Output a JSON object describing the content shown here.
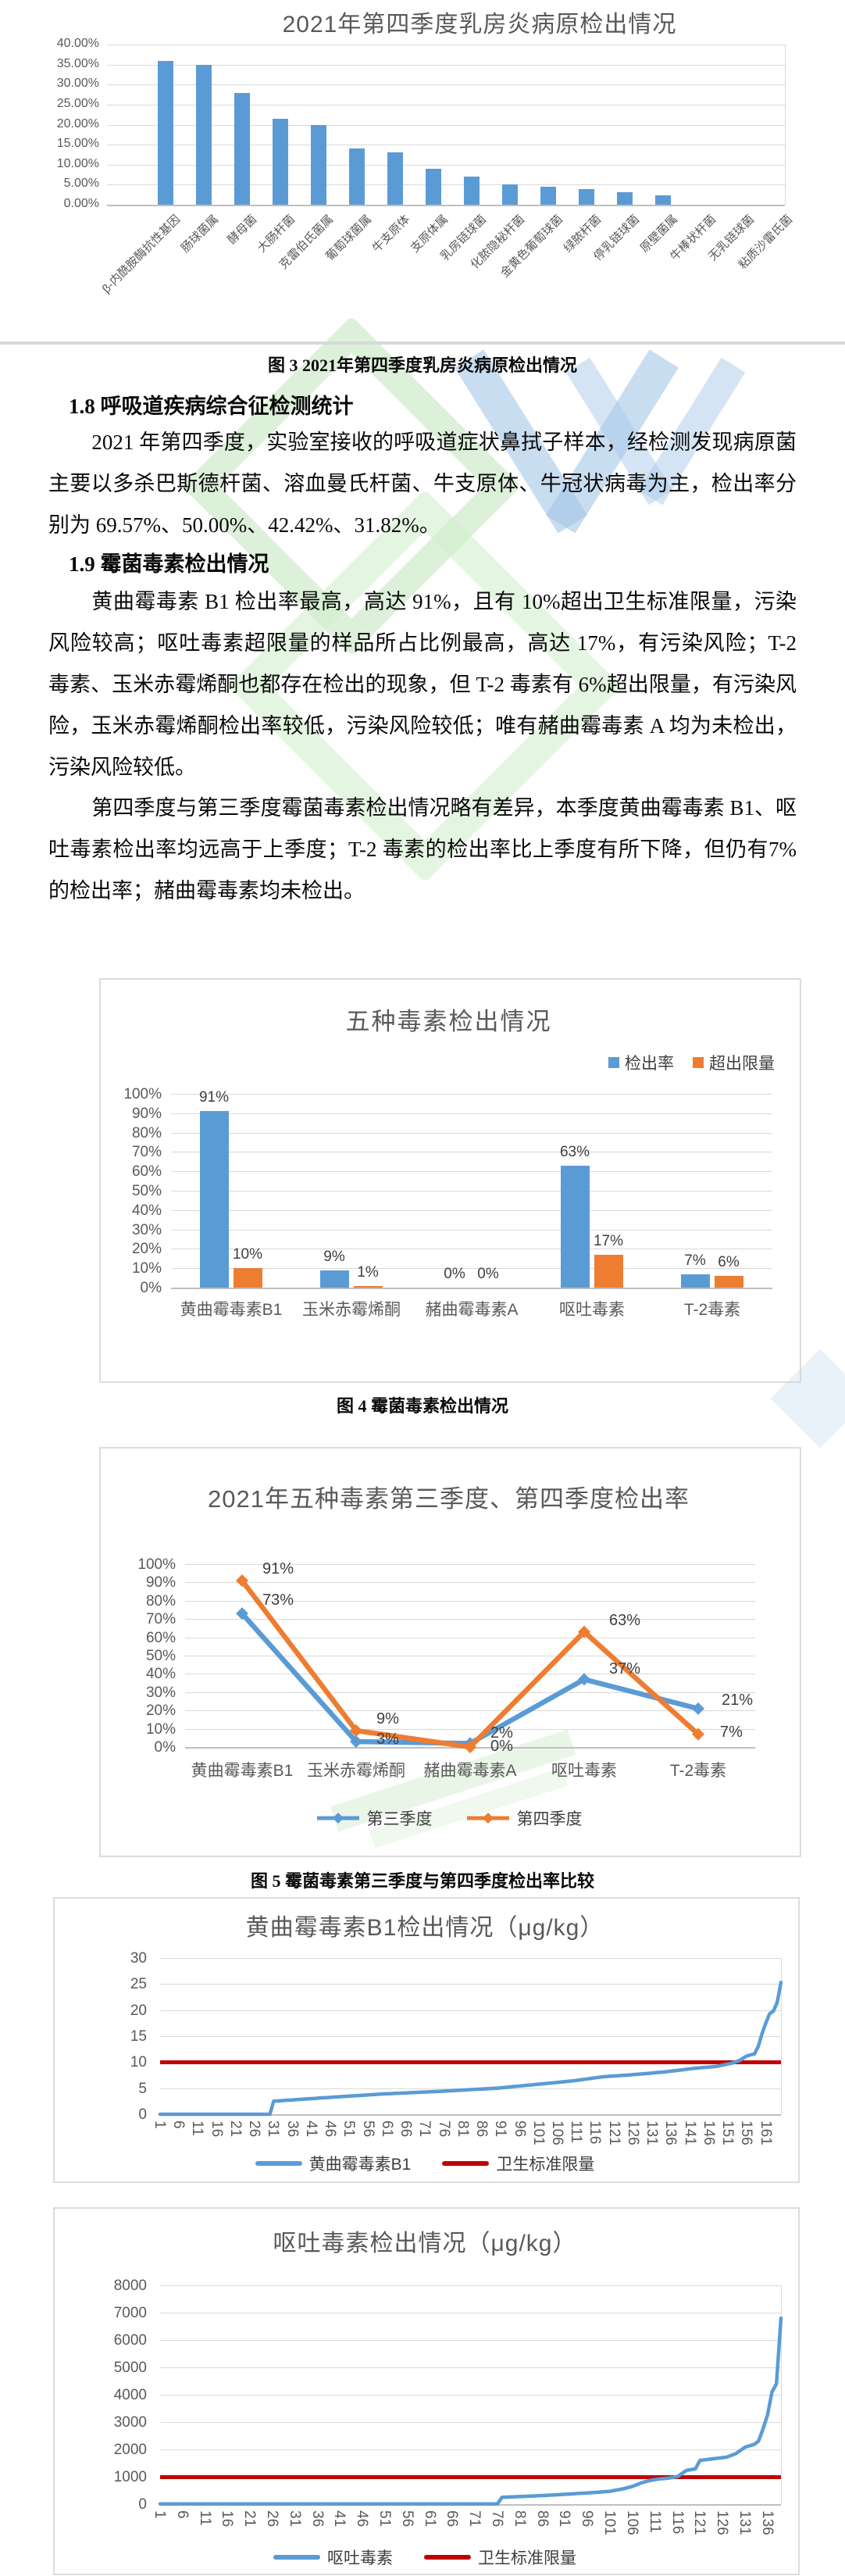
{
  "document": {
    "caption_fig3": "图 3 2021年第四季度乳房炎病原检出情况",
    "heading_1_8": "1.8 呼吸道疾病综合征检测统计",
    "para_1_8": "2021 年第四季度，实验室接收的呼吸道症状鼻拭子样本，经检测发现病原菌主要以多杀巴斯德杆菌、溶血曼氏杆菌、牛支原体、牛冠状病毒为主，检出率分别为 69.57%、50.00%、42.42%、31.82%。",
    "heading_1_9": "1.9 霉菌毒素检出情况",
    "para_1_9_a": "黄曲霉毒素 B1 检出率最高，高达 91%，且有 10%超出卫生标准限量，污染风险较高；呕吐毒素超限量的样品所占比例最高，高达 17%，有污染风险；T-2 毒素、玉米赤霉烯酮也都存在检出的现象，但 T-2 毒素有 6%超出限量，有污染风险，玉米赤霉烯酮检出率较低，污染风险较低；唯有赭曲霉毒素 A 均为未检出，污染风险较低。",
    "para_1_9_b": "第四季度与第三季度霉菌毒素检出情况略有差异，本季度黄曲霉毒素 B1、呕吐毒素检出率均远高于上季度；T-2 毒素的检出率比上季度有所下降，但仍有7%的检出率；赭曲霉毒素均未检出。",
    "caption_fig4": "图 4 霉菌毒素检出情况",
    "caption_fig5": "图 5 霉菌毒素第三季度与第四季度检出率比较"
  },
  "colors": {
    "bar_blue": "#5b9bd5",
    "orange": "#ed7d31",
    "dark_red": "#c00000",
    "axis_text": "#595959",
    "grid": "#d9d9d9",
    "axis_line": "#bfbfbf",
    "data_label": "#3f3f3f"
  },
  "chart_data": [
    {
      "id": "fig3",
      "type": "bar",
      "title": "2021年第四季度乳房炎病原检出情况",
      "categories": [
        "β-内酰胺酶抗性基因",
        "肠球菌属",
        "酵母菌",
        "大肠杆菌",
        "克雷伯氏菌属",
        "葡萄球菌属",
        "牛支原体",
        "支原体属",
        "乳房链球菌",
        "化脓隐秘杆菌",
        "金黄色葡萄球菌",
        "绿脓杆菌",
        "停乳链球菌",
        "原壁菌属",
        "牛棒状杆菌",
        "无乳链球菌",
        "粘质沙雷氏菌"
      ],
      "values": [
        36,
        35,
        28,
        21.5,
        20,
        14,
        13,
        9,
        7,
        5,
        4.5,
        4,
        3.2,
        2.4,
        0,
        0,
        0
      ],
      "y_ticks": [
        "40.00%",
        "35.00%",
        "30.00%",
        "25.00%",
        "20.00%",
        "15.00%",
        "10.00%",
        "5.00%",
        "0.00%"
      ],
      "ylim": [
        0,
        40
      ],
      "grid": true,
      "bar_color": "#5b9bd5"
    },
    {
      "id": "fig4",
      "type": "bar",
      "title": "五种毒素检出情况",
      "categories": [
        "黄曲霉毒素B1",
        "玉米赤霉烯酮",
        "赭曲霉毒素A",
        "呕吐毒素",
        "T-2毒素"
      ],
      "series": [
        {
          "name": "检出率",
          "color": "#5b9bd5",
          "values": [
            91,
            9,
            0,
            63,
            7
          ],
          "labels": [
            "91%",
            "9%",
            "0%",
            "63%",
            "7%"
          ]
        },
        {
          "name": "超出限量",
          "color": "#ed7d31",
          "values": [
            10,
            1,
            0,
            17,
            6
          ],
          "labels": [
            "10%",
            "1%",
            "0%",
            "17%",
            "6%"
          ]
        }
      ],
      "y_ticks": [
        "100%",
        "90%",
        "80%",
        "70%",
        "60%",
        "50%",
        "40%",
        "30%",
        "20%",
        "10%",
        "0%"
      ],
      "ylim": [
        0,
        100
      ],
      "legend_position": "top-right",
      "grid": true
    },
    {
      "id": "fig5",
      "type": "line",
      "title": "2021年五种毒素第三季度、第四季度检出率",
      "categories": [
        "黄曲霉毒素B1",
        "玉米赤霉烯酮",
        "赭曲霉毒素A",
        "呕吐毒素",
        "T-2毒素"
      ],
      "series": [
        {
          "name": "第三季度",
          "color": "#5b9bd5",
          "values": [
            73,
            3,
            2,
            37,
            21
          ],
          "labels": [
            "73%",
            "3%",
            "2%",
            "37%",
            "21%"
          ]
        },
        {
          "name": "第四季度",
          "color": "#ed7d31",
          "values": [
            91,
            9,
            0,
            63,
            7
          ],
          "labels": [
            "91%",
            "9%",
            "0%",
            "63%",
            "7%"
          ]
        }
      ],
      "y_ticks": [
        "100%",
        "90%",
        "80%",
        "70%",
        "60%",
        "50%",
        "40%",
        "30%",
        "20%",
        "10%",
        "0%"
      ],
      "ylim": [
        0,
        100
      ],
      "legend_position": "bottom",
      "grid": true
    },
    {
      "id": "figB1",
      "type": "line",
      "title": "黄曲霉毒素B1检出情况（μg/kg）",
      "x_ticks": [
        1,
        6,
        11,
        16,
        21,
        26,
        31,
        36,
        41,
        46,
        51,
        56,
        61,
        66,
        71,
        76,
        81,
        86,
        91,
        96,
        101,
        106,
        111,
        116,
        121,
        126,
        131,
        136,
        141,
        146,
        151,
        156,
        161
      ],
      "n_samples": 165,
      "y_ticks": [
        30,
        25,
        20,
        15,
        10,
        5,
        0
      ],
      "ylim": [
        0,
        30
      ],
      "series": [
        {
          "name": "黄曲霉毒素B1",
          "color": "#5b9bd5",
          "anchors": [
            [
              1,
              0
            ],
            [
              30,
              0
            ],
            [
              31,
              2.5
            ],
            [
              45,
              3.2
            ],
            [
              60,
              3.9
            ],
            [
              75,
              4.4
            ],
            [
              90,
              5.0
            ],
            [
              100,
              5.7
            ],
            [
              110,
              6.4
            ],
            [
              118,
              7.2
            ],
            [
              126,
              7.6
            ],
            [
              134,
              8.1
            ],
            [
              142,
              8.8
            ],
            [
              148,
              9.2
            ],
            [
              152,
              9.8
            ],
            [
              154,
              10.3
            ],
            [
              156,
              11.2
            ],
            [
              158,
              11.6
            ],
            [
              159,
              13
            ],
            [
              160,
              15.5
            ],
            [
              161,
              17.5
            ],
            [
              162,
              19.3
            ],
            [
              163,
              19.8
            ],
            [
              164,
              21.5
            ],
            [
              165,
              25.3
            ]
          ]
        },
        {
          "name": "卫生标准限量",
          "color": "#c00000",
          "limit": 10
        }
      ],
      "legend_position": "bottom",
      "grid": true
    },
    {
      "id": "figDON",
      "type": "line",
      "title": "呕吐毒素检出情况（μg/kg）",
      "x_ticks": [
        1,
        6,
        11,
        16,
        21,
        26,
        31,
        36,
        41,
        46,
        51,
        56,
        61,
        66,
        71,
        76,
        81,
        86,
        91,
        96,
        101,
        106,
        111,
        116,
        121,
        126,
        131,
        136
      ],
      "n_samples": 139,
      "y_ticks": [
        8000,
        7000,
        6000,
        5000,
        4000,
        3000,
        2000,
        1000,
        0
      ],
      "ylim": [
        0,
        8000
      ],
      "series": [
        {
          "name": "呕吐毒素",
          "color": "#5b9bd5",
          "anchors": [
            [
              1,
              10
            ],
            [
              76,
              10
            ],
            [
              77,
              250
            ],
            [
              83,
              290
            ],
            [
              89,
              340
            ],
            [
              94,
              390
            ],
            [
              98,
              430
            ],
            [
              101,
              470
            ],
            [
              104,
              560
            ],
            [
              106,
              650
            ],
            [
              108,
              780
            ],
            [
              110,
              870
            ],
            [
              112,
              920
            ],
            [
              114,
              950
            ],
            [
              116,
              1010
            ],
            [
              117,
              1120
            ],
            [
              118,
              1230
            ],
            [
              120,
              1290
            ],
            [
              121,
              1600
            ],
            [
              124,
              1660
            ],
            [
              127,
              1720
            ],
            [
              129,
              1850
            ],
            [
              131,
              2080
            ],
            [
              133,
              2180
            ],
            [
              134,
              2300
            ],
            [
              135,
              2750
            ],
            [
              136,
              3250
            ],
            [
              137,
              4100
            ],
            [
              138,
              4400
            ],
            [
              139,
              6800
            ]
          ]
        },
        {
          "name": "卫生标准限量",
          "color": "#c00000",
          "limit": 1000
        }
      ],
      "legend_position": "bottom",
      "grid": true
    }
  ]
}
